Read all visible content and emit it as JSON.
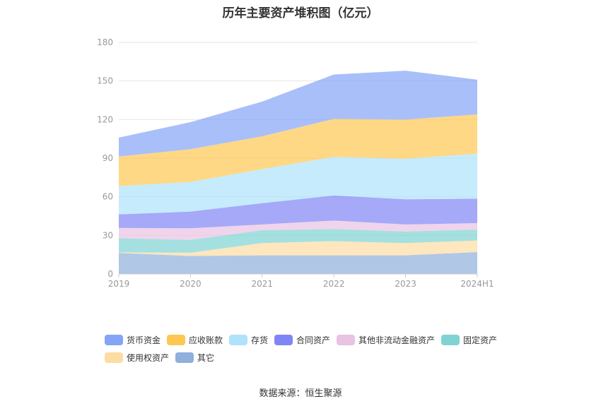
{
  "chart_data": {
    "type": "area",
    "stacked": true,
    "title": "历年主要资产堆积图（亿元）",
    "categories": [
      "2019",
      "2020",
      "2021",
      "2022",
      "2023",
      "2024H1"
    ],
    "ylim": [
      0,
      180
    ],
    "yticks": [
      0,
      30,
      60,
      90,
      120,
      150,
      180
    ],
    "grid": true,
    "legend_position": "bottom",
    "series": [
      {
        "name": "其它",
        "color": "#8fafdc",
        "values": [
          16.3,
          14.0,
          14.5,
          14.5,
          14.5,
          17.0
        ]
      },
      {
        "name": "使用权资产",
        "color": "#fddca3",
        "values": [
          0.5,
          2.5,
          9.5,
          11.0,
          9.5,
          9.0
        ]
      },
      {
        "name": "固定资产",
        "color": "#7fd3d3",
        "values": [
          11.0,
          10.0,
          10.0,
          9.5,
          9.0,
          8.5
        ]
      },
      {
        "name": "其他非流动金融资产",
        "color": "#eac2e2",
        "values": [
          8.0,
          9.0,
          4.5,
          6.5,
          5.5,
          5.0
        ]
      },
      {
        "name": "合同资产",
        "color": "#7f85f5",
        "values": [
          10.5,
          13.0,
          16.5,
          19.5,
          19.5,
          19.0
        ]
      },
      {
        "name": "存货",
        "color": "#aee3fb",
        "values": [
          22.0,
          23.0,
          26.5,
          30.0,
          31.5,
          35.0
        ]
      },
      {
        "name": "应收账款",
        "color": "#fdc751",
        "values": [
          23.0,
          25.5,
          25.5,
          29.5,
          30.5,
          30.5
        ]
      },
      {
        "name": "货币资金",
        "color": "#85a4f8",
        "values": [
          14.7,
          21.0,
          27.0,
          34.5,
          38.0,
          27.0
        ]
      }
    ]
  },
  "legend": {
    "items": [
      {
        "label": "货币资金",
        "color": "#85a4f8"
      },
      {
        "label": "应收账款",
        "color": "#fdc751"
      },
      {
        "label": "存货",
        "color": "#aee3fb"
      },
      {
        "label": "合同资产",
        "color": "#7f85f5"
      },
      {
        "label": "其他非流动金融资产",
        "color": "#eac2e2"
      },
      {
        "label": "固定资产",
        "color": "#7fd3d3"
      },
      {
        "label": "使用权资产",
        "color": "#fddca3"
      },
      {
        "label": "其它",
        "color": "#8fafdc"
      }
    ]
  },
  "footer": {
    "source": "数据来源：恒生聚源"
  }
}
